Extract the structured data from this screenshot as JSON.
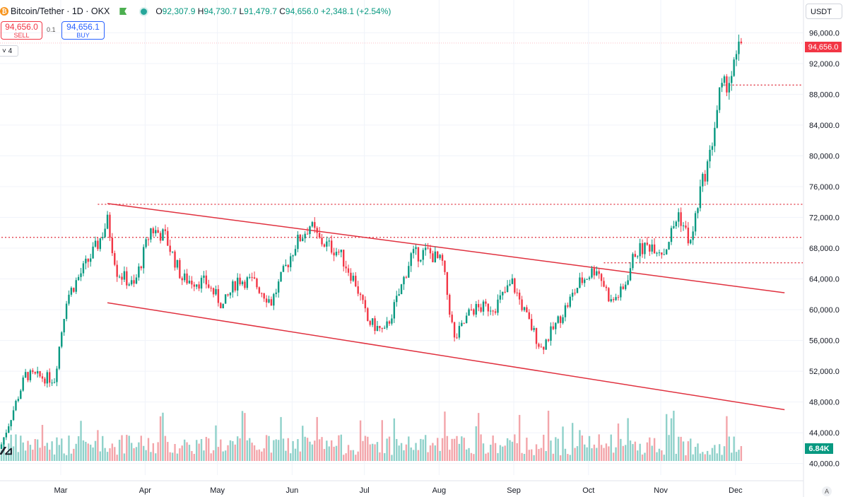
{
  "header": {
    "coin_glyph": "₿",
    "title": "Bitcoin/Tether · 1D · OKX",
    "o_label": "O",
    "o": "92,307.9",
    "h_label": "H",
    "h": "94,730.7",
    "l_label": "L",
    "l": "91,479.7",
    "c_label": "C",
    "c": "94,656.0",
    "change": "+2,348.1 (+2.54%)"
  },
  "trade": {
    "sell_price": "94,656.0",
    "sell_label": "SELL",
    "spread": "0.1",
    "buy_price": "94,656.1",
    "buy_label": "BUY"
  },
  "collapse_label": "4",
  "currency": "USDT",
  "last_price_label": "94,656.0",
  "volume_label": "6.84K",
  "auto_label": "A",
  "colors": {
    "up": "#089981",
    "down": "#f23645",
    "vol_up": "#8fd1ca",
    "vol_down": "#f3a5aa",
    "line": "#e0313f",
    "dotted": "#e0313f",
    "grid": "#f0f3fa"
  },
  "chart_data": {
    "type": "candlestick",
    "y_ticks": [
      "40,000.0",
      "44,000.0",
      "48,000.0",
      "52,000.0",
      "56,000.0",
      "60,000.0",
      "64,000.0",
      "68,000.0",
      "72,000.0",
      "76,000.0",
      "80,000.0",
      "84,000.0",
      "88,000.0",
      "92,000.0",
      "96,000.0"
    ],
    "x_ticks": [
      "Mar",
      "Apr",
      "May",
      "Jun",
      "Jul",
      "Aug",
      "Sep",
      "Oct",
      "Nov",
      "Dec"
    ],
    "ylim": [
      38500,
      97500
    ],
    "close_keypoints": [
      {
        "day": 0,
        "value": 42500
      },
      {
        "day": 10,
        "value": 51500
      },
      {
        "day": 22,
        "value": 51000
      },
      {
        "day": 27,
        "value": 61500
      },
      {
        "day": 40,
        "value": 68500
      },
      {
        "day": 44,
        "value": 71500
      },
      {
        "day": 48,
        "value": 65000
      },
      {
        "day": 55,
        "value": 63000
      },
      {
        "day": 62,
        "value": 70500
      },
      {
        "day": 68,
        "value": 69500
      },
      {
        "day": 75,
        "value": 64000
      },
      {
        "day": 85,
        "value": 63500
      },
      {
        "day": 92,
        "value": 60500
      },
      {
        "day": 98,
        "value": 64000
      },
      {
        "day": 105,
        "value": 63500
      },
      {
        "day": 112,
        "value": 61000
      },
      {
        "day": 122,
        "value": 68500
      },
      {
        "day": 128,
        "value": 71000
      },
      {
        "day": 132,
        "value": 69000
      },
      {
        "day": 140,
        "value": 67500
      },
      {
        "day": 147,
        "value": 63500
      },
      {
        "day": 152,
        "value": 58500
      },
      {
        "day": 159,
        "value": 57000
      },
      {
        "day": 165,
        "value": 62000
      },
      {
        "day": 170,
        "value": 67000
      },
      {
        "day": 177,
        "value": 67500
      },
      {
        "day": 183,
        "value": 66000
      },
      {
        "day": 188,
        "value": 56000
      },
      {
        "day": 195,
        "value": 60000
      },
      {
        "day": 205,
        "value": 60500
      },
      {
        "day": 212,
        "value": 63500
      },
      {
        "day": 218,
        "value": 59000
      },
      {
        "day": 224,
        "value": 55000
      },
      {
        "day": 230,
        "value": 58000
      },
      {
        "day": 240,
        "value": 63500
      },
      {
        "day": 247,
        "value": 65500
      },
      {
        "day": 253,
        "value": 61000
      },
      {
        "day": 258,
        "value": 62500
      },
      {
        "day": 263,
        "value": 67500
      },
      {
        "day": 270,
        "value": 68500
      },
      {
        "day": 275,
        "value": 67500
      },
      {
        "day": 281,
        "value": 72500
      },
      {
        "day": 286,
        "value": 68500
      },
      {
        "day": 290,
        "value": 75500
      },
      {
        "day": 294,
        "value": 80000
      },
      {
        "day": 298,
        "value": 88000
      },
      {
        "day": 303,
        "value": 90500
      },
      {
        "day": 307,
        "value": 94656
      }
    ],
    "channel_upper": [
      {
        "day": 44,
        "value": 73800
      },
      {
        "day": 325,
        "value": 62200
      }
    ],
    "channel_lower": [
      {
        "day": 44,
        "value": 60900
      },
      {
        "day": 325,
        "value": 47000
      }
    ],
    "horizontal_levels": [
      {
        "value": 73700,
        "from_day": 40
      },
      {
        "value": 69400,
        "from_day": 0
      },
      {
        "value": 66100,
        "from_day": 250
      },
      {
        "value": 89200,
        "from_day": 299
      }
    ]
  }
}
